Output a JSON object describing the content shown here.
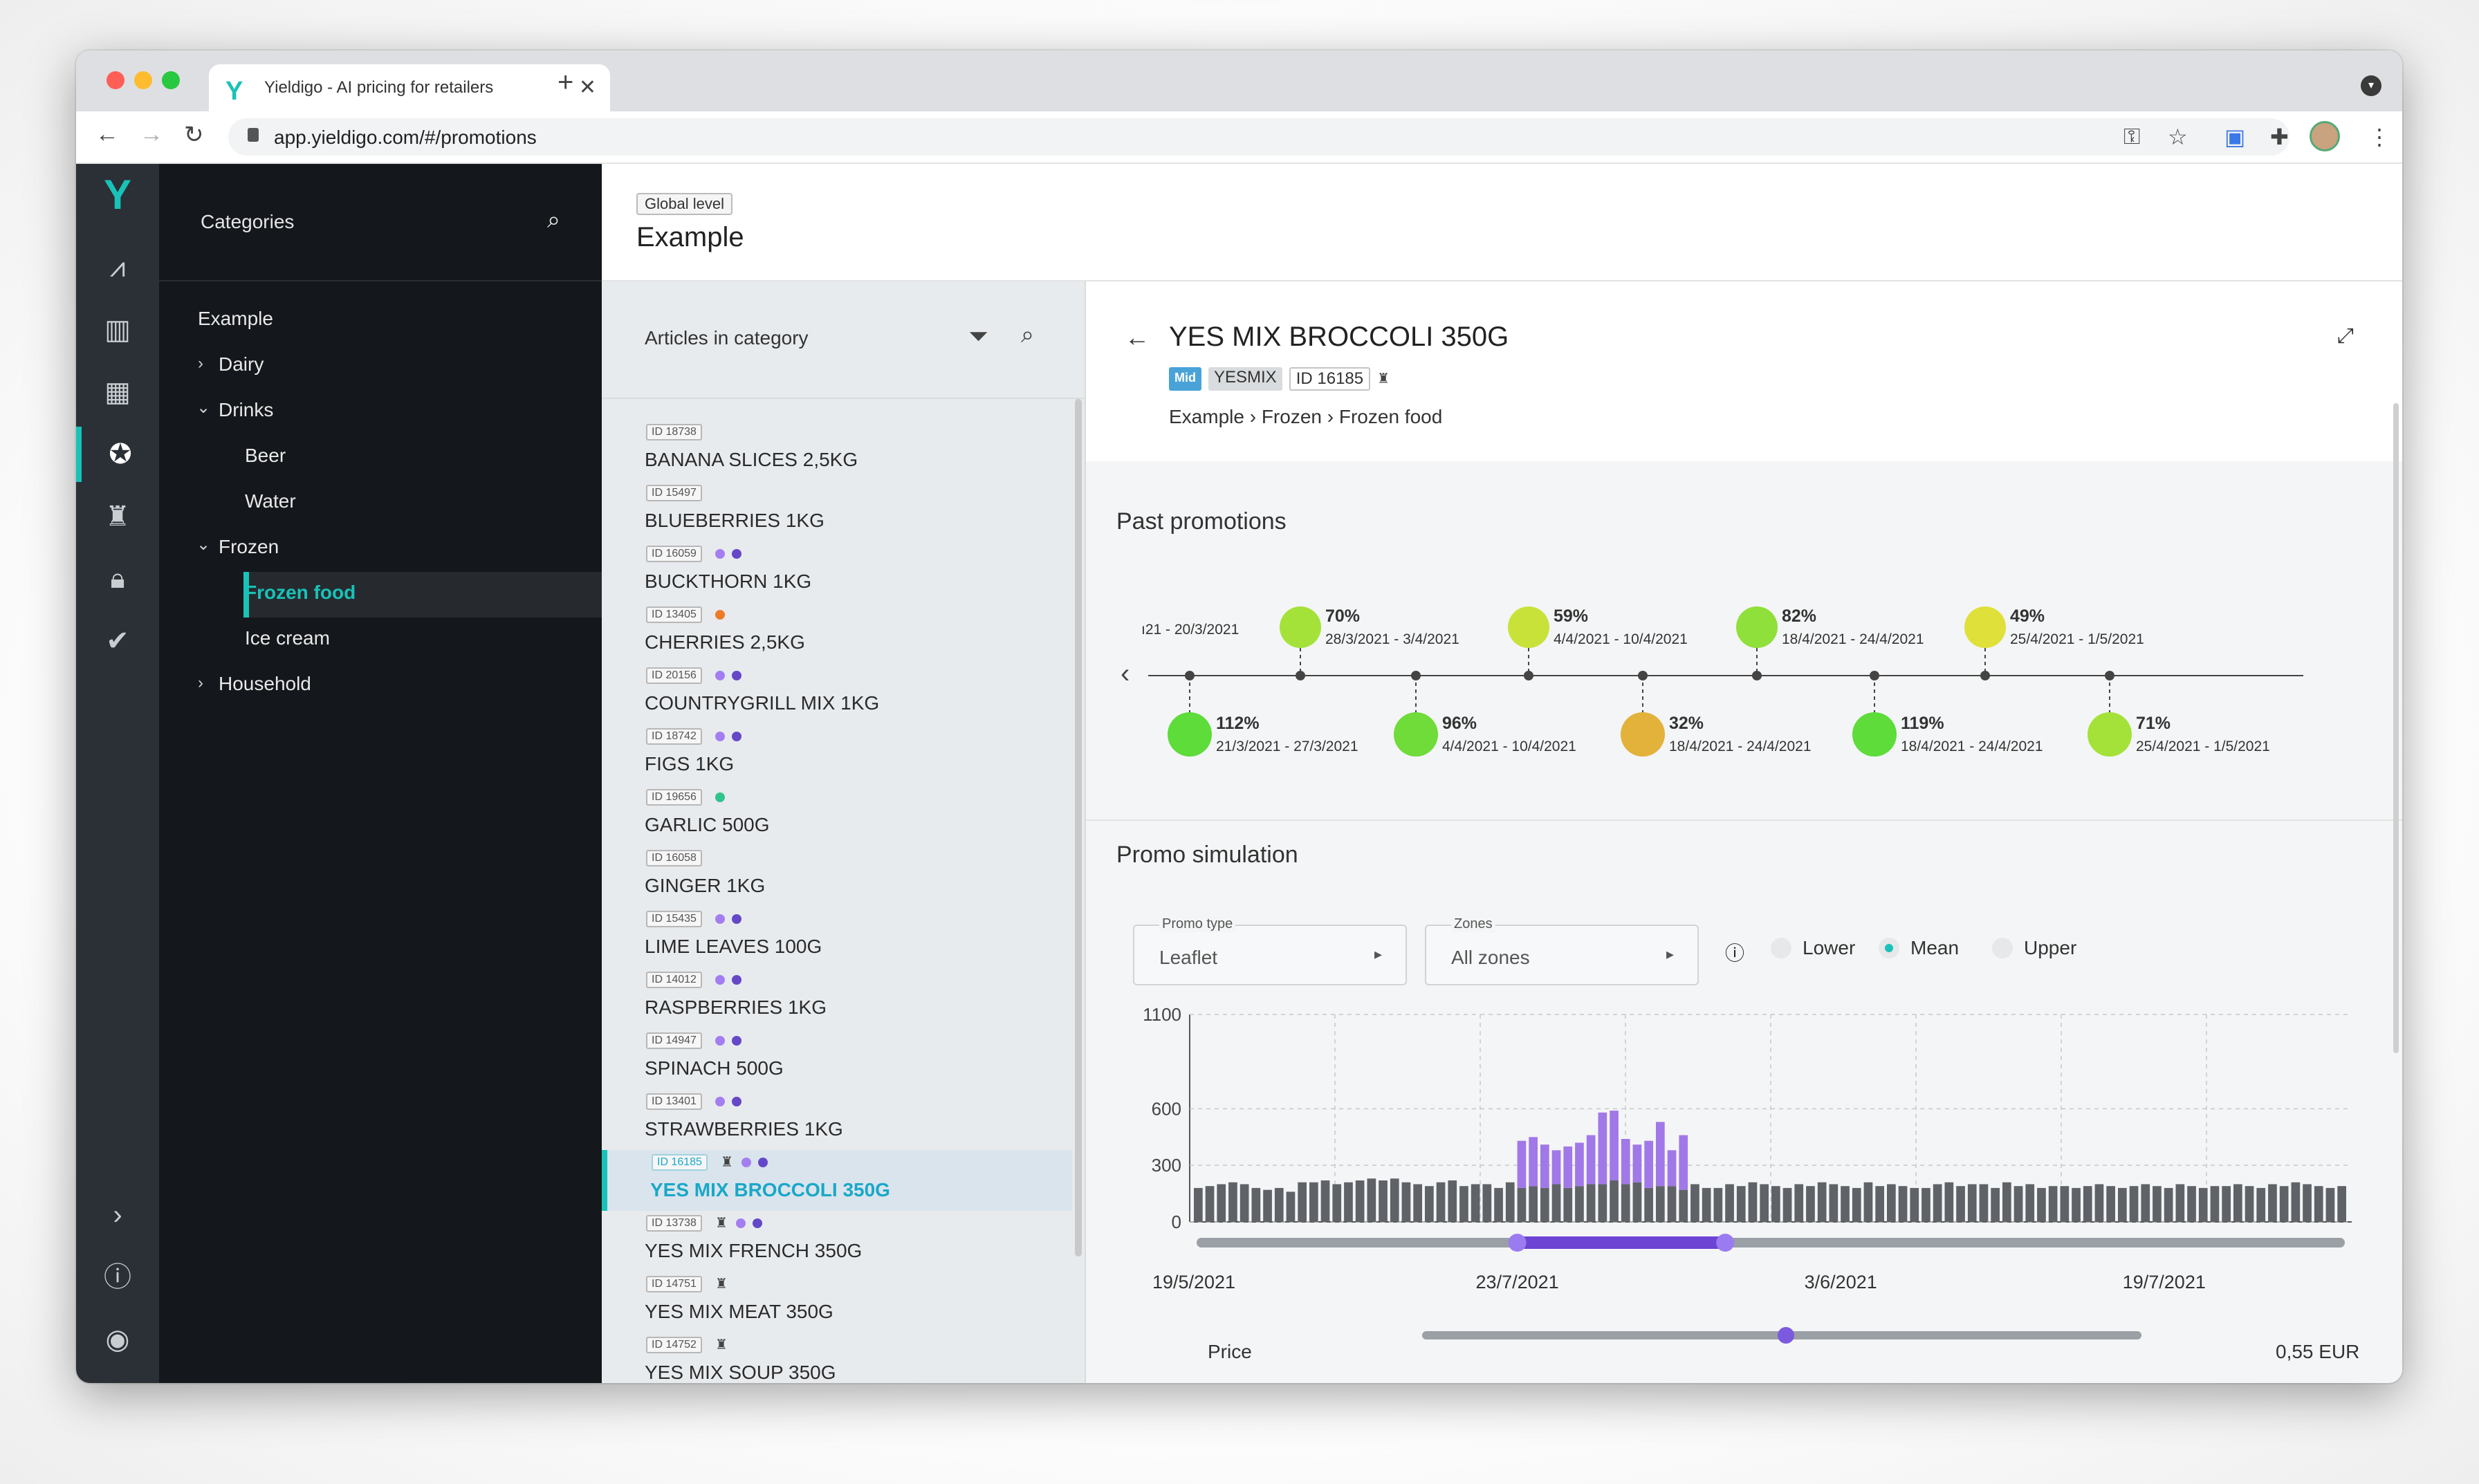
{
  "browser": {
    "tab_title": "Yieldigo - AI pricing for retailers",
    "url": "app.yieldigo.com/#/promotions",
    "colors": {
      "close": "#ff5f57",
      "minimize": "#febc2e",
      "zoom": "#28c840"
    }
  },
  "categories": {
    "title": "Categories",
    "items": [
      {
        "label": "Example"
      },
      {
        "label": "Dairy"
      },
      {
        "label": "Drinks"
      },
      {
        "label": "Beer"
      },
      {
        "label": "Water"
      },
      {
        "label": "Frozen"
      },
      {
        "label": "Frozen food"
      },
      {
        "label": "Ice cream"
      },
      {
        "label": "Household"
      }
    ]
  },
  "header": {
    "badge": "Global level",
    "title": "Example"
  },
  "articles": {
    "title": "Articles in category",
    "items": [
      {
        "id": "ID 18738",
        "name": "BANANA SLICES 2,5KG",
        "marks": []
      },
      {
        "id": "ID 15497",
        "name": "BLUEBERRIES 1KG",
        "marks": []
      },
      {
        "id": "ID 16059",
        "name": "BUCKTHORN 1KG",
        "marks": [
          "#a47ef0",
          "#6448c8"
        ]
      },
      {
        "id": "ID 13405",
        "name": "CHERRIES 2,5KG",
        "marks": [
          "#ef7a2a"
        ]
      },
      {
        "id": "ID 20156",
        "name": "COUNTRYGRILL MIX 1KG",
        "marks": [
          "#a47ef0",
          "#6448c8"
        ]
      },
      {
        "id": "ID 18742",
        "name": "FIGS 1KG",
        "marks": [
          "#a47ef0",
          "#6448c8"
        ]
      },
      {
        "id": "ID 19656",
        "name": "GARLIC 500G",
        "marks": [
          "#2ec48a"
        ]
      },
      {
        "id": "ID 16058",
        "name": "GINGER 1KG",
        "marks": []
      },
      {
        "id": "ID 15435",
        "name": "LIME LEAVES 100G",
        "marks": [
          "#a47ef0",
          "#6448c8"
        ]
      },
      {
        "id": "ID 14012",
        "name": "RASPBERRIES 1KG",
        "marks": [
          "#a47ef0",
          "#6448c8"
        ]
      },
      {
        "id": "ID 14947",
        "name": "SPINACH 500G",
        "marks": [
          "#a47ef0",
          "#6448c8"
        ]
      },
      {
        "id": "ID 13401",
        "name": "STRAWBERRIES 1KG",
        "marks": [
          "#a47ef0",
          "#6448c8"
        ]
      },
      {
        "id": "ID 16185",
        "name": "YES MIX BROCCOLI 350G",
        "marks": [
          "bottles",
          "#a47ef0",
          "#6448c8"
        ],
        "selected": true
      },
      {
        "id": "ID 13738",
        "name": "YES MIX FRENCH 350G",
        "marks": [
          "bottles",
          "#a47ef0",
          "#6448c8"
        ]
      },
      {
        "id": "ID 14751",
        "name": "YES MIX MEAT 350G",
        "marks": [
          "bottles"
        ]
      },
      {
        "id": "ID 14752",
        "name": "YES MIX SOUP 350G",
        "marks": [
          "bottles"
        ]
      }
    ]
  },
  "detail": {
    "name": "YES MIX BROCCOLI 350G",
    "tag_mid": "Mid",
    "tag_brand": "YESMIX",
    "tag_id": "ID 16185",
    "breadcrumb": [
      "Example",
      "Frozen",
      "Frozen food"
    ],
    "past_title": "Past promotions",
    "promos_top": [
      {
        "pct": "",
        "dates": "ı21 - 20/3/2021",
        "color": ""
      },
      {
        "pct": "70%",
        "dates": "28/3/2021 - 3/4/2021",
        "color": "#a4e23a"
      },
      {
        "pct": "59%",
        "dates": "4/4/2021 - 10/4/2021",
        "color": "#c9e23a"
      },
      {
        "pct": "82%",
        "dates": "18/4/2021 - 24/4/2021",
        "color": "#8fe03a"
      },
      {
        "pct": "49%",
        "dates": "25/4/2021 - 1/5/2021",
        "color": "#dfe03a"
      }
    ],
    "promos_bottom": [
      {
        "pct": "112%",
        "dates": "21/3/2021 - 27/3/2021",
        "color": "#5ddc3a"
      },
      {
        "pct": "96%",
        "dates": "4/4/2021 - 10/4/2021",
        "color": "#6fdc3a"
      },
      {
        "pct": "32%",
        "dates": "18/4/2021 - 24/4/2021",
        "color": "#e2b23a"
      },
      {
        "pct": "119%",
        "dates": "18/4/2021 - 24/4/2021",
        "color": "#5ddc3a"
      },
      {
        "pct": "71%",
        "dates": "25/4/2021 - 1/5/2021",
        "color": "#a4e23a"
      }
    ],
    "sim_title": "Promo simulation",
    "promo_type": {
      "label": "Promo type",
      "value": "Leaflet"
    },
    "zones": {
      "label": "Zones",
      "value": "All zones"
    },
    "radios": [
      {
        "label": "Lower",
        "on": false
      },
      {
        "label": "Mean",
        "on": true
      },
      {
        "label": "Upper",
        "on": false
      }
    ],
    "price_label": "Price",
    "price_value": "0,55 EUR"
  },
  "chart_data": {
    "type": "bar",
    "title": "",
    "xlabel": "",
    "ylabel": "",
    "ylim": [
      0,
      1100
    ],
    "yticks": [
      0,
      300,
      600,
      1100
    ],
    "xtick_labels": [
      {
        "label": "19/5/2021",
        "index": 0
      },
      {
        "label": "23/7/2021",
        "index": 28
      },
      {
        "label": "3/6/2021",
        "index": 56
      },
      {
        "label": "19/7/2021",
        "index": 84
      }
    ],
    "series": [
      {
        "color": "#5f6368",
        "values": [
          180,
          190,
          200,
          210,
          200,
          180,
          170,
          180,
          160,
          210,
          210,
          220,
          200,
          210,
          220,
          230,
          220,
          230,
          210,
          200,
          190,
          210,
          220,
          190,
          200,
          200,
          180,
          210,
          180,
          190,
          180,
          200,
          180,
          190,
          200,
          200,
          220,
          200,
          210,
          180,
          190,
          190,
          170,
          200,
          180,
          180,
          200,
          190,
          210,
          200,
          190,
          180,
          200,
          190,
          210,
          200,
          190,
          180,
          210,
          190,
          200,
          190,
          180,
          180,
          200,
          210,
          190,
          200,
          200,
          180,
          210,
          190,
          200,
          180,
          190,
          190,
          180,
          190,
          200,
          190,
          180,
          190,
          200,
          190,
          180,
          200,
          190,
          180,
          190,
          190,
          200,
          190,
          180,
          200,
          190,
          210,
          200,
          190,
          180,
          190
        ]
      },
      {
        "color": "#a178e8",
        "values": [
          0,
          0,
          0,
          0,
          0,
          0,
          0,
          0,
          0,
          0,
          0,
          0,
          0,
          0,
          0,
          0,
          0,
          0,
          0,
          0,
          0,
          0,
          0,
          0,
          0,
          0,
          0,
          0,
          250,
          260,
          230,
          180,
          220,
          230,
          260,
          380,
          370,
          240,
          200,
          250,
          340,
          190,
          290,
          0,
          0,
          0,
          0,
          0,
          0,
          0,
          0,
          0,
          0,
          0,
          0,
          0,
          0,
          0,
          0,
          0,
          0,
          0,
          0,
          0,
          0,
          0,
          0,
          0,
          0,
          0,
          0,
          0,
          0,
          0,
          0,
          0,
          0,
          0,
          0,
          0,
          0,
          0,
          0,
          0,
          0,
          0,
          0,
          0,
          0,
          0,
          0,
          0,
          0,
          0,
          0,
          0,
          0,
          0,
          0,
          0
        ]
      }
    ],
    "range_selection": [
      28,
      46
    ],
    "grid": true
  }
}
